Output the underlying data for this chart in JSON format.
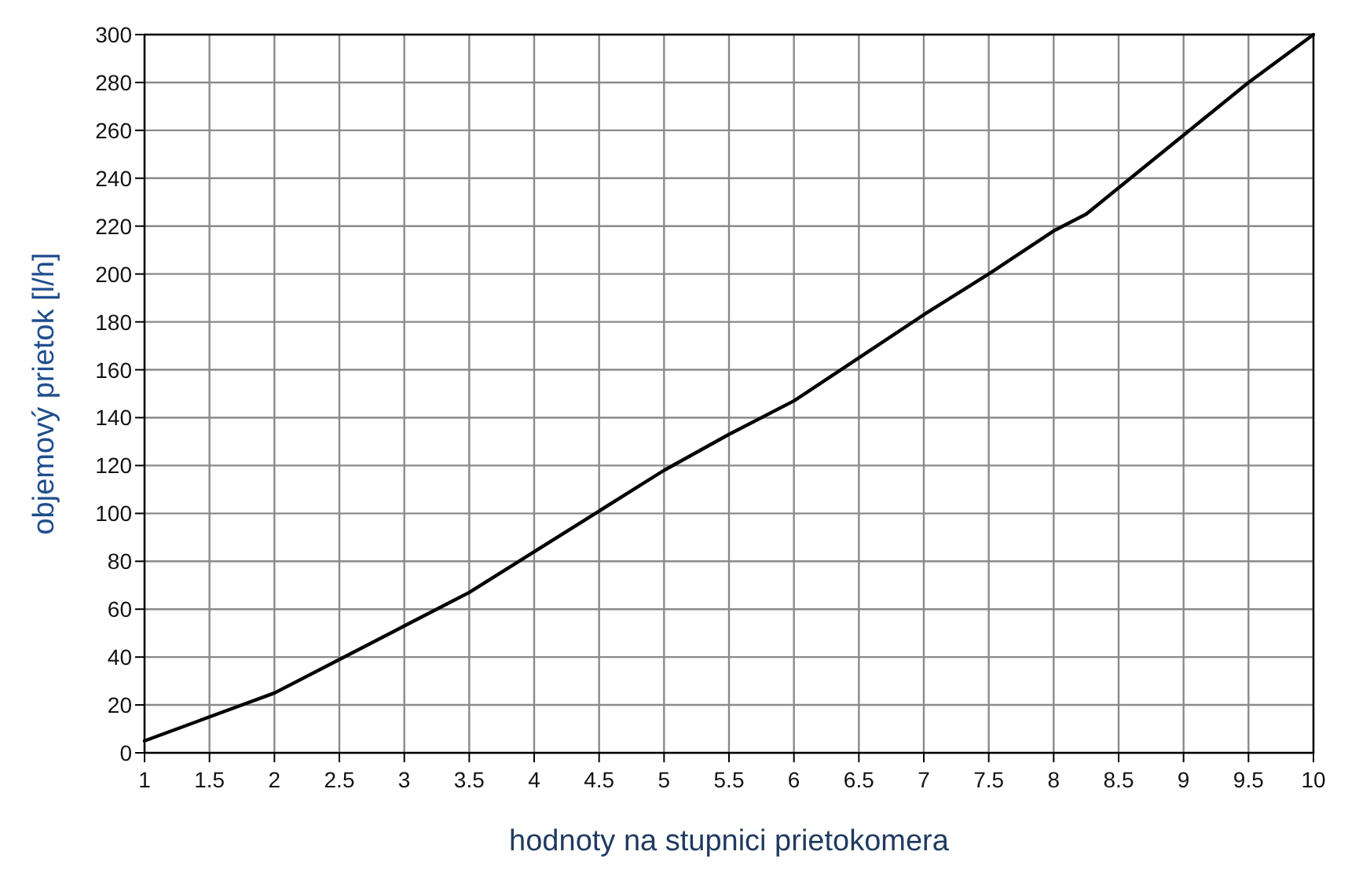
{
  "chart_data": {
    "type": "line",
    "xlabel": "hodnoty na stupnici prietokomera",
    "ylabel": "objemový prietok [l/h]",
    "x": [
      1,
      1.5,
      2,
      2.5,
      3,
      3.5,
      4,
      4.5,
      5,
      5.5,
      6,
      6.5,
      7,
      7.5,
      8,
      8.25,
      8.5,
      9,
      9.5,
      10
    ],
    "series": [
      {
        "color": "#000000",
        "values": [
          5,
          15,
          25,
          39,
          53,
          67,
          84,
          101,
          118,
          133,
          147,
          165,
          183,
          200,
          218,
          225,
          236,
          258,
          280,
          300
        ]
      }
    ],
    "xlim": [
      1,
      10
    ],
    "xticks": [
      1,
      1.5,
      2,
      2.5,
      3,
      3.5,
      4,
      4.5,
      5,
      5.5,
      6,
      6.5,
      7,
      7.5,
      8,
      8.5,
      9,
      9.5,
      10
    ],
    "ylim": [
      0,
      300
    ],
    "yticks": [
      0,
      20,
      40,
      60,
      80,
      100,
      120,
      140,
      160,
      180,
      200,
      220,
      240,
      260,
      280,
      300
    ],
    "grid": true,
    "marker": "none",
    "line_style": "solid"
  }
}
